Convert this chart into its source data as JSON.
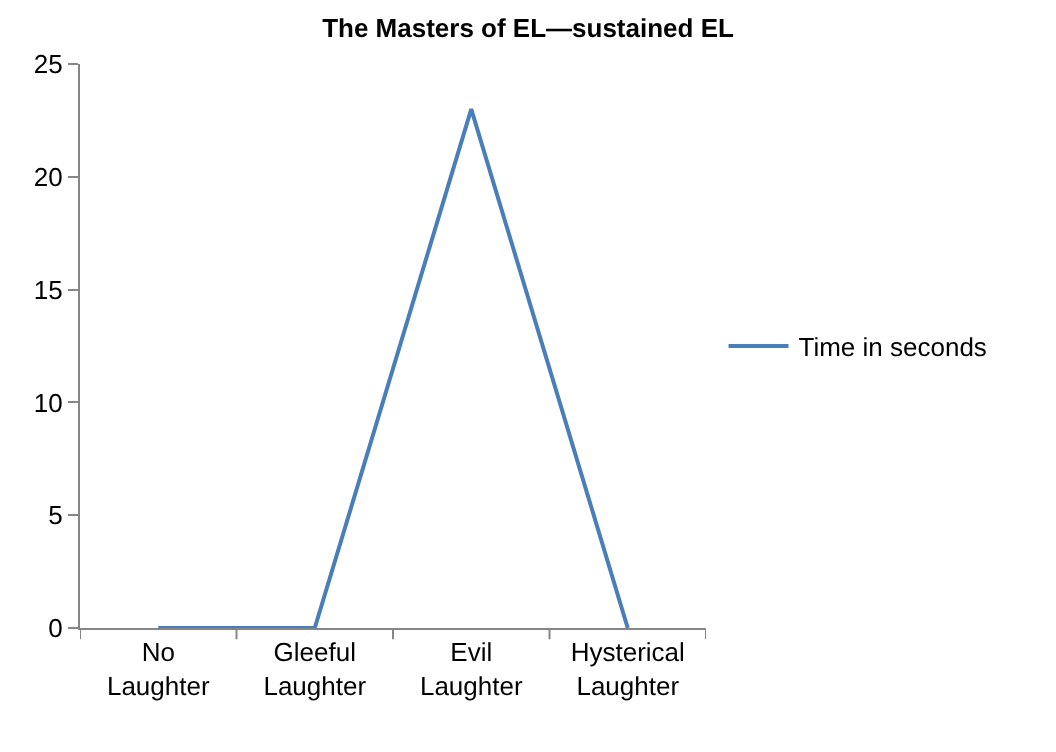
{
  "chart_data": {
    "type": "line",
    "title": "The Masters of EL—sustained EL",
    "categories": [
      "No Laughter",
      "Gleeful Laughter",
      "Evil Laughter",
      "Hysterical Laughter"
    ],
    "series": [
      {
        "name": "Time in seconds",
        "color": "#4a7ebb",
        "values": [
          0,
          0,
          23,
          0
        ]
      }
    ],
    "ylim": [
      0,
      25
    ],
    "yticks": [
      0,
      5,
      10,
      15,
      20,
      25
    ],
    "legend": "right",
    "marker": "none",
    "line_style": "solid"
  }
}
